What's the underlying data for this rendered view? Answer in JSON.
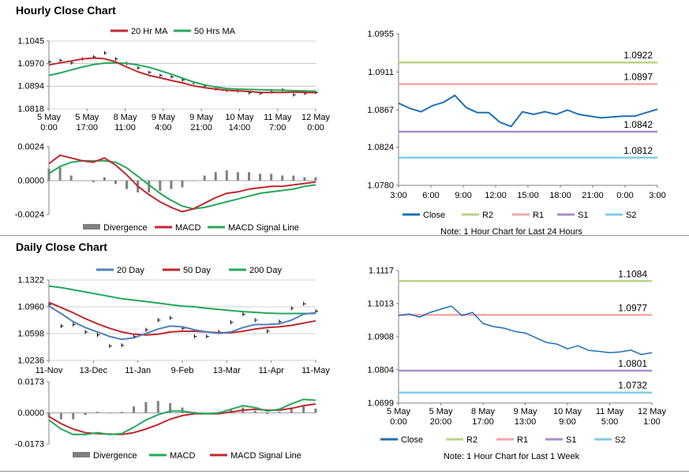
{
  "sections": {
    "hourly_title": "Hourly Close Chart",
    "daily_title": "Daily Close Chart"
  },
  "colors": {
    "red": "#c0282e",
    "green": "#24a85a",
    "blue": "#4f81bd",
    "close_blue": "#1f6fb5",
    "r2": "#b7d488",
    "r1": "#f0a8a8",
    "s1": "#a98fc8",
    "s2": "#82cbe6",
    "bar_gray": "#808080",
    "grid": "#a6a6a6"
  },
  "chart_data": [
    {
      "id": "hourly_price",
      "type": "line",
      "legend": [
        "20 Hr MA",
        "50 Hrs MA"
      ],
      "y_ticks": [
        "1.1045",
        "1.0970",
        "1.0894",
        "1.0818"
      ],
      "ylim": [
        1.0818,
        1.1045
      ],
      "x_ticks": [
        [
          "5 May",
          "0:00"
        ],
        [
          "5 May",
          "17:00"
        ],
        [
          "8 May",
          "11:00"
        ],
        [
          "9 May",
          "4:00"
        ],
        [
          "9 May",
          "21:00"
        ],
        [
          "10 May",
          "14:00"
        ],
        [
          "11 May",
          "7:00"
        ],
        [
          "12 May",
          "0:00"
        ]
      ],
      "series": [
        {
          "name": "20 Hr MA",
          "color_key": "red",
          "values": [
            1.0965,
            1.0972,
            1.0978,
            1.0985,
            1.0988,
            1.0986,
            1.0975,
            1.0958,
            1.0942,
            1.093,
            1.0922,
            1.0913,
            1.0905,
            1.0895,
            1.0889,
            1.0884,
            1.088,
            1.0878,
            1.0876,
            1.0873,
            1.0873,
            1.0873,
            1.0874,
            1.0873,
            1.0872
          ]
        },
        {
          "name": "50 Hrs MA",
          "color_key": "green",
          "values": [
            1.093,
            1.0938,
            1.0948,
            1.0958,
            1.0966,
            1.0971,
            1.0972,
            1.097,
            1.0965,
            1.0957,
            1.0946,
            1.0934,
            1.0921,
            1.0908,
            1.0898,
            1.0891,
            1.0886,
            1.0884,
            1.0883,
            1.0882,
            1.0881,
            1.088,
            1.0879,
            1.0878,
            1.0877
          ]
        }
      ],
      "price": [
        1.0975,
        1.098,
        1.0972,
        1.0985,
        1.0992,
        1.1005,
        1.0985,
        1.097,
        1.0955,
        1.094,
        1.093,
        1.0925,
        1.0915,
        1.0905,
        1.0895,
        1.0885,
        1.088,
        1.0878,
        1.0872,
        1.087,
        1.0875,
        1.0882,
        1.0865,
        1.087,
        1.0873
      ]
    },
    {
      "id": "hourly_macd",
      "type": "line",
      "legend": [
        "Divergence",
        "MACD",
        "MACD Signal Line"
      ],
      "y_ticks": [
        "0.0024",
        "0.0000",
        "-0.0024"
      ],
      "ylim": [
        -0.0024,
        0.0024
      ],
      "series": [
        {
          "name": "MACD",
          "color_key": "red",
          "values": [
            0.0012,
            0.0018,
            0.0016,
            0.0014,
            0.0013,
            0.0016,
            0.0011,
            0.0004,
            -0.0004,
            -0.001,
            -0.0015,
            -0.0019,
            -0.0022,
            -0.002,
            -0.0016,
            -0.0012,
            -0.0009,
            -0.0008,
            -0.0006,
            -0.0005,
            -0.0004,
            -0.0004,
            -0.0003,
            -0.0002,
            -0.0001
          ]
        },
        {
          "name": "MACD Signal Line",
          "color_key": "green",
          "values": [
            0.0005,
            0.001,
            0.0013,
            0.0014,
            0.0014,
            0.0014,
            0.0013,
            0.0009,
            0.0003,
            -0.0003,
            -0.0009,
            -0.0014,
            -0.0018,
            -0.002,
            -0.0019,
            -0.0017,
            -0.0015,
            -0.0013,
            -0.0011,
            -0.0009,
            -0.0008,
            -0.0007,
            -0.0006,
            -0.0004,
            -0.0003
          ]
        }
      ]
    },
    {
      "id": "hourly_pivot",
      "type": "line",
      "legend": [
        "Close",
        "R2",
        "R1",
        "S1",
        "S2"
      ],
      "note": "Note: 1 Hour Chart for Last 24 Hours",
      "y_ticks": [
        "1.0955",
        "1.0911",
        "1.0867",
        "1.0824",
        "1.0780"
      ],
      "ylim": [
        1.078,
        1.0955
      ],
      "x_ticks": [
        "3:00",
        "6:00",
        "9:00",
        "12:00",
        "15:00",
        "18:00",
        "21:00",
        "0:00",
        "3:00"
      ],
      "levels": [
        {
          "name": "R2",
          "value": 1.0922,
          "label": "1.0922",
          "color_key": "r2"
        },
        {
          "name": "R1",
          "value": 1.0897,
          "label": "1.0897",
          "color_key": "r1"
        },
        {
          "name": "S1",
          "value": 1.0842,
          "label": "1.0842",
          "color_key": "s1"
        },
        {
          "name": "S2",
          "value": 1.0812,
          "label": "1.0812",
          "color_key": "s2"
        }
      ],
      "close": [
        1.0875,
        1.0869,
        1.0865,
        1.0872,
        1.0876,
        1.0884,
        1.087,
        1.0864,
        1.0864,
        1.0853,
        1.0848,
        1.0865,
        1.0862,
        1.0865,
        1.0862,
        1.0867,
        1.0862,
        1.086,
        1.0858,
        1.0859,
        1.086,
        1.086,
        1.0864,
        1.0868
      ]
    },
    {
      "id": "daily_price",
      "type": "line",
      "legend": [
        "20 Day",
        "50 Day",
        "200 Day"
      ],
      "y_ticks": [
        "1.1322",
        "1.0960",
        "1.0598",
        "1.0236"
      ],
      "ylim": [
        1.0236,
        1.1322
      ],
      "x_ticks": [
        "11-Nov",
        "13-Dec",
        "11-Jan",
        "9-Feb",
        "13-Mar",
        "11-Apr",
        "11-May"
      ],
      "series": [
        {
          "name": "20 Day",
          "color_key": "blue",
          "values": [
            1.097,
            1.087,
            1.076,
            1.068,
            1.062,
            1.056,
            1.052,
            1.054,
            1.06,
            1.066,
            1.07,
            1.069,
            1.065,
            1.062,
            1.06,
            1.062,
            1.068,
            1.072,
            1.072,
            1.073,
            1.078,
            1.086,
            1.088
          ]
        },
        {
          "name": "50 Day",
          "color_key": "red",
          "values": [
            1.102,
            1.095,
            1.088,
            1.08,
            1.073,
            1.067,
            1.062,
            1.059,
            1.058,
            1.059,
            1.062,
            1.063,
            1.063,
            1.062,
            1.061,
            1.061,
            1.063,
            1.066,
            1.068,
            1.069,
            1.071,
            1.074,
            1.077
          ]
        },
        {
          "name": "200 Day",
          "color_key": "green",
          "values": [
            1.124,
            1.122,
            1.119,
            1.116,
            1.113,
            1.11,
            1.107,
            1.105,
            1.103,
            1.101,
            1.099,
            1.097,
            1.096,
            1.094,
            1.0925,
            1.091,
            1.0895,
            1.0885,
            1.0875,
            1.087,
            1.087,
            1.087,
            1.087
          ]
        }
      ],
      "price": [
        1.099,
        1.07,
        1.072,
        1.062,
        1.058,
        1.043,
        1.044,
        1.056,
        1.065,
        1.078,
        1.081,
        1.067,
        1.056,
        1.056,
        1.062,
        1.075,
        1.086,
        1.078,
        1.063,
        1.076,
        1.094,
        1.1,
        1.09
      ]
    },
    {
      "id": "daily_macd",
      "type": "line",
      "legend": [
        "Divergence",
        "MACD",
        "MACD Signal Line"
      ],
      "y_ticks": [
        "0.0173",
        "0.0000",
        "-0.0173"
      ],
      "ylim": [
        -0.0173,
        0.0173
      ],
      "series": [
        {
          "name": "MACD",
          "color_key": "green",
          "values": [
            -0.004,
            -0.009,
            -0.012,
            -0.012,
            -0.011,
            -0.012,
            -0.0115,
            -0.008,
            -0.004,
            -0.001,
            0.001,
            0.001,
            0.0,
            -0.0005,
            0.0,
            0.002,
            0.004,
            0.003,
            0.001,
            0.002,
            0.005,
            0.0075,
            0.007
          ]
        },
        {
          "name": "MACD Signal Line",
          "color_key": "red",
          "values": [
            -0.002,
            -0.006,
            -0.009,
            -0.011,
            -0.0115,
            -0.0118,
            -0.012,
            -0.011,
            -0.009,
            -0.0065,
            -0.0035,
            -0.0015,
            -0.0005,
            -0.0005,
            -0.0005,
            0.0005,
            0.0015,
            0.002,
            0.0015,
            0.0015,
            0.0025,
            0.004,
            0.005
          ]
        }
      ]
    },
    {
      "id": "daily_pivot",
      "type": "line",
      "legend": [
        "Close",
        "R2",
        "R1",
        "S1",
        "S2"
      ],
      "note": "Note: 1 Hour Chart for Last 1 Week",
      "y_ticks": [
        "1.1117",
        "1.1013",
        "1.0908",
        "1.0804",
        "1.0699"
      ],
      "ylim": [
        1.0699,
        1.1117
      ],
      "x_ticks": [
        [
          "5 May",
          "0:00"
        ],
        [
          "5 May",
          "20:00"
        ],
        [
          "8 May",
          "17:00"
        ],
        [
          "9 May",
          "13:00"
        ],
        [
          "10 May",
          "9:00"
        ],
        [
          "11 May",
          "5:00"
        ],
        [
          "12 May",
          "1:00"
        ]
      ],
      "levels": [
        {
          "name": "R2",
          "value": 1.1084,
          "label": "1.1084",
          "color_key": "r2"
        },
        {
          "name": "R1",
          "value": 1.0977,
          "label": "1.0977",
          "color_key": "r1"
        },
        {
          "name": "S1",
          "value": 1.0801,
          "label": "1.0801",
          "color_key": "s1"
        },
        {
          "name": "S2",
          "value": 1.0732,
          "label": "1.0732",
          "color_key": "s2"
        }
      ],
      "close": [
        1.0975,
        1.098,
        1.097,
        1.0985,
        1.0995,
        1.1005,
        1.0975,
        1.0985,
        1.095,
        1.094,
        1.0935,
        1.0925,
        1.092,
        1.0905,
        1.089,
        1.0885,
        1.087,
        1.088,
        1.0865,
        1.0862,
        1.0858,
        1.086,
        1.0866,
        1.0852,
        1.0858
      ]
    }
  ]
}
